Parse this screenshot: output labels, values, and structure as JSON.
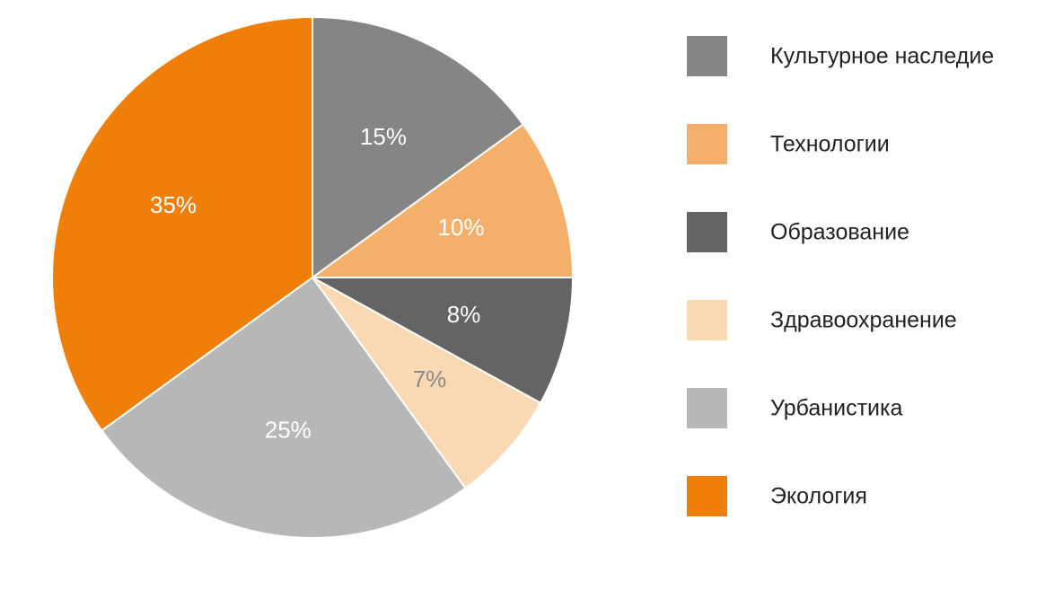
{
  "chart_data": {
    "type": "pie",
    "categories": [
      "Культурное наследие",
      "Технологии",
      "Образование",
      "Здравоохранение",
      "Урбанистика",
      "Экология"
    ],
    "values": [
      15,
      10,
      8,
      7,
      25,
      35
    ],
    "value_labels": [
      "15%",
      "10%",
      "8%",
      "7%",
      "25%",
      "35%"
    ],
    "colors": [
      "#858585",
      "#f4b06a",
      "#646464",
      "#f9d8b4",
      "#b7b7b7",
      "#f07f09"
    ],
    "legend": "right"
  }
}
